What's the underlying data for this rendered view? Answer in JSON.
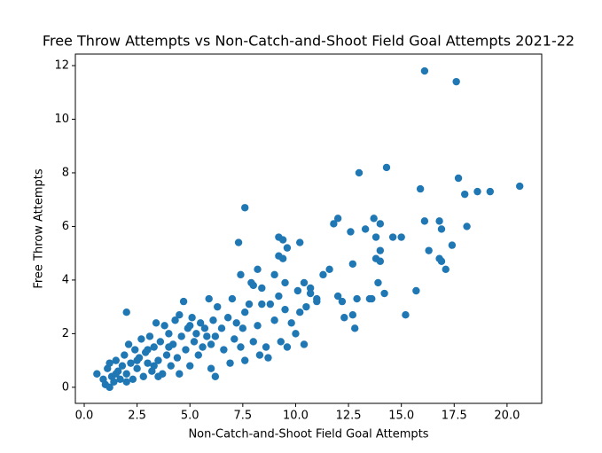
{
  "chart_data": {
    "type": "scatter",
    "title": "Free Throw Attempts vs Non-Catch-and-Shoot Field Goal Attempts 2021-22",
    "xlabel": "Non-Catch-and-Shoot Field Goal Attempts",
    "ylabel": "Free Throw Attempts",
    "color": "#1f77b4",
    "x": [
      16.1,
      17.6,
      14.3,
      13.0,
      17.7,
      15.9,
      20.6,
      18.6,
      19.2,
      18.0,
      7.6,
      16.1,
      16.8,
      12.0,
      11.8,
      13.7,
      14.0,
      13.3,
      12.6,
      16.9,
      18.1,
      7.3,
      9.2,
      9.4,
      10.2,
      9.6,
      14.6,
      15.0,
      13.8,
      17.4,
      16.3,
      14.0,
      16.8,
      16.9,
      17.1,
      13.8,
      14.0,
      12.7,
      11.6,
      11.3,
      8.2,
      9.2,
      9.4,
      7.4,
      7.9,
      8.0,
      8.4,
      9.0,
      9.5,
      15.2,
      15.7,
      14.2,
      13.9,
      12.0,
      12.2,
      12.9,
      13.5,
      13.6,
      10.7,
      10.7,
      10.4,
      10.1,
      11.0,
      12.3,
      12.7,
      12.8,
      10.4,
      9.6,
      9.3,
      8.7,
      8.3,
      7.6,
      6.0,
      6.2,
      2.0,
      0.6,
      0.9,
      1.0,
      1.1,
      1.2,
      1.3,
      1.2,
      1.4,
      1.5,
      1.6,
      1.7,
      1.8,
      1.9,
      2.0,
      2.1,
      2.2,
      2.3,
      2.4,
      2.5,
      2.6,
      2.7,
      2.8,
      2.9,
      3.0,
      3.1,
      3.2,
      3.3,
      3.4,
      3.5,
      3.6,
      3.7,
      3.8,
      3.9,
      4.0,
      4.1,
      4.2,
      4.3,
      4.4,
      4.5,
      4.6,
      4.7,
      4.8,
      4.9,
      5.0,
      5.1,
      5.2,
      5.3,
      5.4,
      5.5,
      5.6,
      5.7,
      5.8,
      5.9,
      6.0,
      6.1,
      6.2,
      6.3,
      6.5,
      6.6,
      6.8,
      6.9,
      7.0,
      7.1,
      7.2,
      7.4,
      7.5,
      7.6,
      7.8,
      8.0,
      8.2,
      8.4,
      8.6,
      8.8,
      9.0,
      9.2,
      9.5,
      9.8,
      10.0,
      10.2,
      10.5,
      11.0,
      1.5,
      2.5,
      3.0,
      3.5,
      4.0,
      4.5,
      5.0,
      2.0,
      3.3
    ],
    "y": [
      11.8,
      11.4,
      8.2,
      8.0,
      7.8,
      7.4,
      7.5,
      7.3,
      7.3,
      7.2,
      6.7,
      6.2,
      6.2,
      6.3,
      6.1,
      6.3,
      6.1,
      5.9,
      5.8,
      5.9,
      6.0,
      5.4,
      5.6,
      5.5,
      5.4,
      5.2,
      5.6,
      5.6,
      5.6,
      5.3,
      5.1,
      5.1,
      4.8,
      4.7,
      4.4,
      4.8,
      4.7,
      4.6,
      4.4,
      4.2,
      4.4,
      4.9,
      4.8,
      4.2,
      3.9,
      3.8,
      3.7,
      4.2,
      3.9,
      2.7,
      3.6,
      3.5,
      3.9,
      3.4,
      3.2,
      3.3,
      3.3,
      3.3,
      3.7,
      3.5,
      3.9,
      3.6,
      3.3,
      2.6,
      2.7,
      2.2,
      1.6,
      1.5,
      1.7,
      1.1,
      1.2,
      1.0,
      0.7,
      0.4,
      2.8,
      0.5,
      0.3,
      0.1,
      0.7,
      0.9,
      0.4,
      0.0,
      0.2,
      1.0,
      0.6,
      0.3,
      0.8,
      1.2,
      0.5,
      1.6,
      0.9,
      0.3,
      1.4,
      0.7,
      1.1,
      1.8,
      0.4,
      1.3,
      0.9,
      1.9,
      0.6,
      1.5,
      2.4,
      1.0,
      1.7,
      0.5,
      2.3,
      1.2,
      2.0,
      0.8,
      1.6,
      2.5,
      1.1,
      2.7,
      1.9,
      3.2,
      1.4,
      2.2,
      0.8,
      2.6,
      1.7,
      2.0,
      1.2,
      2.4,
      1.5,
      2.2,
      1.9,
      3.3,
      1.6,
      2.5,
      1.9,
      3.0,
      2.2,
      1.4,
      2.6,
      0.9,
      3.3,
      1.8,
      2.4,
      1.5,
      2.2,
      2.8,
      3.1,
      1.7,
      2.3,
      3.1,
      1.5,
      3.1,
      2.5,
      3.4,
      2.9,
      2.4,
      2.0,
      2.8,
      3.0,
      3.2,
      0.5,
      1.0,
      1.4,
      0.4,
      1.5,
      0.5,
      2.3,
      0.2,
      0.8
    ],
    "xlim": [
      -0.42,
      21.64
    ],
    "ylim": [
      -0.6,
      12.43
    ],
    "xticks": [
      {
        "value": 0,
        "label": "0.0"
      },
      {
        "value": 2.5,
        "label": "2.5"
      },
      {
        "value": 5,
        "label": "5.0"
      },
      {
        "value": 7.5,
        "label": "7.5"
      },
      {
        "value": 10,
        "label": "10.0"
      },
      {
        "value": 12.5,
        "label": "12.5"
      },
      {
        "value": 15,
        "label": "15.0"
      },
      {
        "value": 17.5,
        "label": "17.5"
      },
      {
        "value": 20,
        "label": "20.0"
      }
    ],
    "yticks": [
      0,
      2,
      4,
      6,
      8,
      10,
      12
    ],
    "grid": false
  }
}
